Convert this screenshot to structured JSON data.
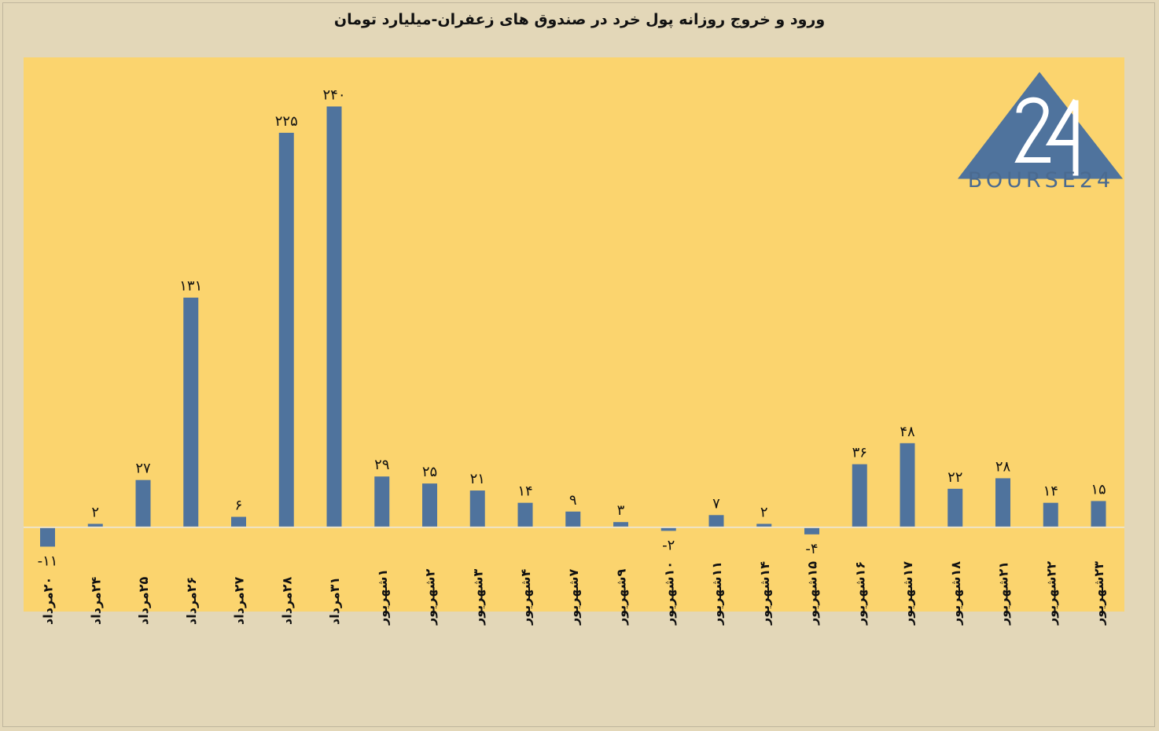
{
  "title": "ورود و خروج روزانه پول خرد در صندوق های زعفران-میلیارد تومان",
  "logo": {
    "text": "BOURSE24",
    "icon": "bourse24-logo-icon"
  },
  "colors": {
    "background": "#e3d7b8",
    "plot_area": "#fbd46e",
    "bar": "#4f739d",
    "zero_line": "#eee4c8",
    "text": "#111111"
  },
  "chart_data": {
    "type": "bar",
    "title": "ورود و خروج روزانه پول خرد در صندوق های زعفران-میلیارد تومان",
    "xlabel": "",
    "ylabel": "",
    "grid": false,
    "legend": "none",
    "ylim": [
      -48,
      268
    ],
    "categories": [
      "۲۰مرداد",
      "۲۴مرداد",
      "۲۵مرداد",
      "۲۶مرداد",
      "۲۷مرداد",
      "۲۸مرداد",
      "۳۱مرداد",
      "۱شهریور",
      "۲شهریور",
      "۳شهریور",
      "۴شهریور",
      "۷شهریور",
      "۹شهریور",
      "۱۰شهریور",
      "۱۱شهریور",
      "۱۴شهریور",
      "۱۵شهریور",
      "۱۶شهریور",
      "۱۷شهریور",
      "۱۸شهریور",
      "۲۱شهریور",
      "۲۲شهریور",
      "۲۳شهریور"
    ],
    "values": [
      -11,
      2,
      27,
      131,
      6,
      225,
      240,
      29,
      25,
      21,
      14,
      9,
      3,
      -2,
      7,
      2,
      -4,
      36,
      48,
      22,
      28,
      14,
      15
    ],
    "value_labels": [
      "-۱۱",
      "۲",
      "۲۷",
      "۱۳۱",
      "۶",
      "۲۲۵",
      "۲۴۰",
      "۲۹",
      "۲۵",
      "۲۱",
      "۱۴",
      "۹",
      "۳",
      "-۲",
      "۷",
      "۲",
      "-۴",
      "۳۶",
      "۴۸",
      "۲۲",
      "۲۸",
      "۱۴",
      "۱۵"
    ]
  }
}
